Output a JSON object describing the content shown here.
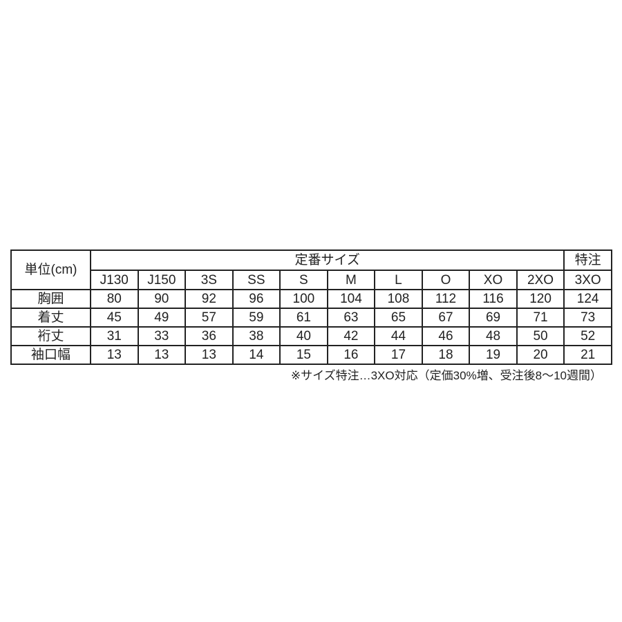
{
  "table": {
    "unit_label": "単位(cm)",
    "standard_header": "定番サイズ",
    "custom_header": "特注",
    "size_columns": [
      "J130",
      "J150",
      "3S",
      "SS",
      "S",
      "M",
      "L",
      "O",
      "XO",
      "2XO",
      "3XO"
    ],
    "rows": [
      {
        "label": "胸囲",
        "values": [
          "80",
          "90",
          "92",
          "96",
          "100",
          "104",
          "108",
          "112",
          "116",
          "120",
          "124"
        ]
      },
      {
        "label": "着丈",
        "values": [
          "45",
          "49",
          "57",
          "59",
          "61",
          "63",
          "65",
          "67",
          "69",
          "71",
          "73"
        ]
      },
      {
        "label": "裄丈",
        "values": [
          "31",
          "33",
          "36",
          "38",
          "40",
          "42",
          "44",
          "46",
          "48",
          "50",
          "52"
        ]
      },
      {
        "label": "袖口幅",
        "values": [
          "13",
          "13",
          "13",
          "14",
          "15",
          "16",
          "17",
          "18",
          "19",
          "20",
          "21"
        ]
      }
    ],
    "footnote": "※サイズ特注…3XO対応（定価30%増、受注後8～10週間）"
  },
  "colors": {
    "background": "#ffffff",
    "border": "#222222",
    "text": "#222222"
  }
}
